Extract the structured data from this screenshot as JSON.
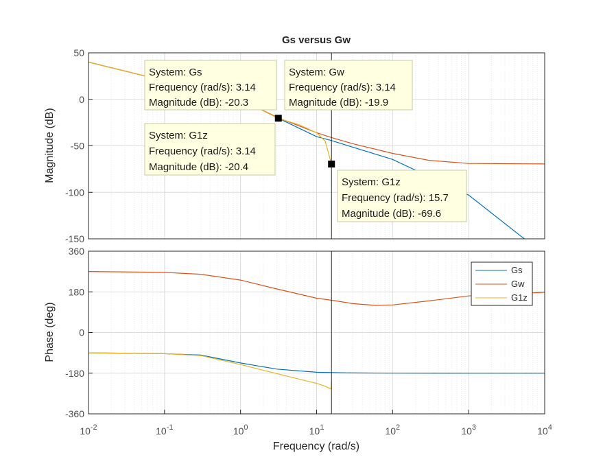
{
  "chart_data": {
    "type": "line",
    "title": "Gs versus Gw",
    "xlabel": "Frequency  (rad/s)",
    "xscale": "log",
    "xlim": [
      0.01,
      10000
    ],
    "x_tick_labels": [
      {
        "base": "10",
        "exp": "-2"
      },
      {
        "base": "10",
        "exp": "-1"
      },
      {
        "base": "10",
        "exp": "0"
      },
      {
        "base": "10",
        "exp": "1"
      },
      {
        "base": "10",
        "exp": "2"
      },
      {
        "base": "10",
        "exp": "3"
      },
      {
        "base": "10",
        "exp": "4"
      }
    ],
    "grid": true,
    "cursor_frequency": 15.7,
    "colors": {
      "Gs": "#0072BD",
      "Gw": "#D95319",
      "G1z": "#EDB120"
    },
    "magnitude": {
      "ylabel": "Magnitude (dB)",
      "ylim": [
        -150,
        50
      ],
      "yticks": [
        50,
        0,
        -50,
        -100,
        -150
      ],
      "series": [
        {
          "name": "Gs",
          "x": [
            0.01,
            0.1,
            1,
            3.14,
            10,
            15.7,
            100,
            1000,
            5400
          ],
          "y": [
            40,
            20,
            0,
            -20.3,
            -40.1,
            -44.3,
            -64.6,
            -103,
            -150
          ]
        },
        {
          "name": "Gw",
          "x": [
            0.01,
            0.1,
            1,
            3.14,
            10,
            15.7,
            30,
            100,
            300,
            1000,
            10000
          ],
          "y": [
            40,
            20,
            0,
            -19.9,
            -35.8,
            -41.1,
            -47.7,
            -58.1,
            -65.6,
            -69.0,
            -69.5
          ]
        },
        {
          "name": "G1z",
          "x": [
            0.01,
            0.1,
            1,
            3.14,
            6,
            10,
            13,
            15.7
          ],
          "y": [
            40,
            20,
            0,
            -20.4,
            -27.5,
            -36,
            -45,
            -69.6
          ]
        }
      ]
    },
    "phase": {
      "ylabel": "Phase (deg)",
      "ylim": [
        -360,
        360
      ],
      "yticks": [
        360,
        180,
        0,
        -180,
        -360
      ],
      "series": [
        {
          "name": "Gs",
          "x": [
            0.01,
            0.1,
            0.3,
            1,
            3,
            10,
            30,
            100,
            1000,
            10000
          ],
          "y": [
            -90,
            -94,
            -100,
            -135,
            -162,
            -176,
            -179,
            -179.8,
            -180,
            -180
          ]
        },
        {
          "name": "Gw",
          "x": [
            0.01,
            0.1,
            0.3,
            1,
            3,
            10,
            15.7,
            30,
            60,
            100,
            300,
            1000,
            10000
          ],
          "y": [
            270,
            266,
            258,
            232,
            193,
            152,
            143,
            128,
            120,
            122,
            140,
            162,
            178
          ]
        },
        {
          "name": "G1z",
          "x": [
            0.01,
            0.1,
            0.3,
            1,
            3,
            10,
            13,
            15.5,
            15.7
          ],
          "y": [
            -90,
            -94,
            -102,
            -142,
            -182,
            -225,
            -238,
            -250,
            -220
          ]
        }
      ]
    },
    "legend": {
      "location": "top-right",
      "entries": [
        "Gs",
        "Gw",
        "G1z"
      ]
    },
    "datatips": [
      {
        "system": "System: Gs",
        "frequency": "Frequency (rad/s): 3.14",
        "magnitude": "Magnitude (dB): -20.3"
      },
      {
        "system": "System: Gw",
        "frequency": "Frequency (rad/s): 3.14",
        "magnitude": "Magnitude (dB): -19.9"
      },
      {
        "system": "System: G1z",
        "frequency": "Frequency (rad/s): 3.14",
        "magnitude": "Magnitude (dB): -20.4"
      },
      {
        "system": "System: G1z",
        "frequency": "Frequency (rad/s): 15.7",
        "magnitude": "Magnitude (dB): -69.6"
      }
    ],
    "datatip_markers": [
      {
        "x": 3.14,
        "y": -20.3
      },
      {
        "x": 15.7,
        "y": -69.6
      }
    ]
  }
}
